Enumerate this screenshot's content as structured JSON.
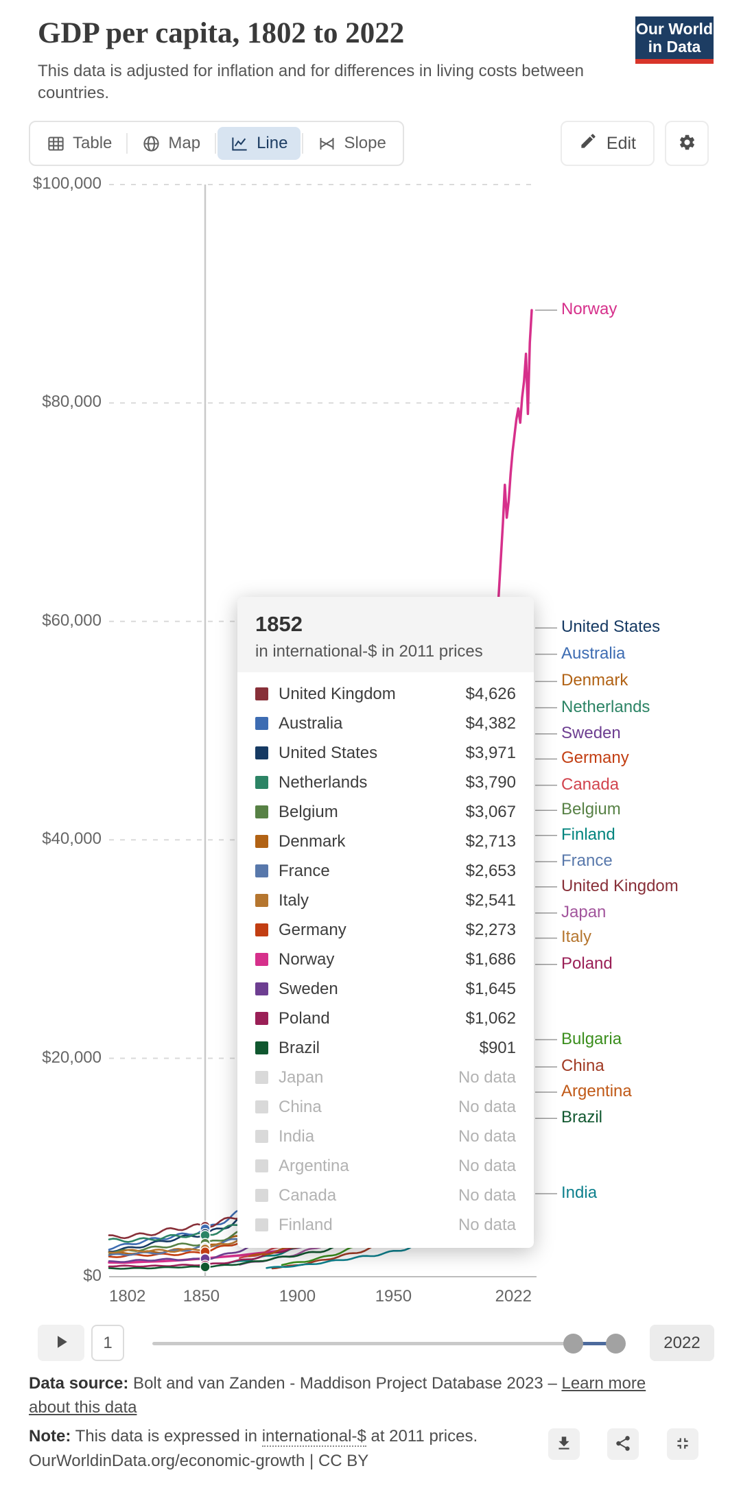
{
  "header": {
    "title": "GDP per capita, 1802 to 2022",
    "subtitle": "This data is adjusted for inflation and for differences in living costs between countries.",
    "logo_line1": "Our World",
    "logo_line2": "in Data"
  },
  "tabs": [
    {
      "id": "table",
      "label": "Table",
      "active": false
    },
    {
      "id": "map",
      "label": "Map",
      "active": false
    },
    {
      "id": "line",
      "label": "Line",
      "active": true
    },
    {
      "id": "slope",
      "label": "Slope",
      "active": false
    }
  ],
  "toolbar": {
    "edit_label": "Edit"
  },
  "chart_data": {
    "type": "line",
    "title": "GDP per capita, 1802 to 2022",
    "unit": "international-$ in 2011 prices",
    "xlim": [
      1802,
      2022
    ],
    "ylim": [
      0,
      100000
    ],
    "grid": true,
    "hover_year": 1852,
    "y_ticks": [
      {
        "label": "$100,000",
        "value": 100000
      },
      {
        "label": "$80,000",
        "value": 80000
      },
      {
        "label": "$60,000",
        "value": 60000
      },
      {
        "label": "$40,000",
        "value": 40000
      },
      {
        "label": "$20,000",
        "value": 20000
      },
      {
        "label": "$0",
        "value": 0
      }
    ],
    "x_ticks": [
      {
        "label": "1802",
        "year": 1802,
        "align": "left"
      },
      {
        "label": "1850",
        "year": 1850,
        "align": "center"
      },
      {
        "label": "1900",
        "year": 1900,
        "align": "center"
      },
      {
        "label": "1950",
        "year": 1950,
        "align": "center"
      },
      {
        "label": "2022",
        "year": 2022,
        "align": "right"
      }
    ],
    "series": [
      {
        "name": "Norway",
        "color": "#d6308b",
        "points": [
          [
            1802,
            1300
          ],
          [
            1810,
            1280
          ],
          [
            1820,
            1360
          ],
          [
            1830,
            1420
          ],
          [
            1840,
            1520
          ],
          [
            1852,
            1686
          ],
          [
            1860,
            1800
          ],
          [
            1870,
            1950
          ],
          [
            1880,
            2150
          ],
          [
            1890,
            2350
          ],
          [
            1900,
            2650
          ],
          [
            1910,
            3050
          ],
          [
            1920,
            3600
          ],
          [
            1930,
            4500
          ],
          [
            1940,
            5500
          ],
          [
            1950,
            7500
          ],
          [
            1960,
            10000
          ],
          [
            1970,
            14500
          ],
          [
            1980,
            21000
          ],
          [
            1990,
            30000
          ],
          [
            1995,
            40000
          ],
          [
            2000,
            50000
          ],
          [
            2003,
            57000
          ],
          [
            2005,
            63000
          ],
          [
            2007,
            69000
          ],
          [
            2008,
            72500
          ],
          [
            2009,
            69500
          ],
          [
            2010,
            71000
          ],
          [
            2011,
            73500
          ],
          [
            2012,
            75500
          ],
          [
            2013,
            77000
          ],
          [
            2014,
            78500
          ],
          [
            2015,
            79500
          ],
          [
            2016,
            78200
          ],
          [
            2017,
            80500
          ],
          [
            2018,
            82000
          ],
          [
            2019,
            84500
          ],
          [
            2020,
            79000
          ],
          [
            2021,
            85500
          ],
          [
            2022,
            88500
          ]
        ],
        "end_value": 88500
      },
      {
        "name": "United States",
        "color": "#163a63",
        "start_year": 1802,
        "start_value": 2400,
        "v1852": 3971,
        "end_value": 59400
      },
      {
        "name": "Australia",
        "color": "#3d6cb2",
        "start_year": 1802,
        "start_value": 2650,
        "v1852": 4382,
        "end_value": 57000
      },
      {
        "name": "Denmark",
        "color": "#b16214",
        "start_year": 1802,
        "start_value": 2000,
        "v1852": 2713,
        "end_value": 54500
      },
      {
        "name": "Netherlands",
        "color": "#2c8465",
        "start_year": 1802,
        "start_value": 3300,
        "v1852": 3790,
        "end_value": 52100
      },
      {
        "name": "Sweden",
        "color": "#6d3e91",
        "start_year": 1802,
        "start_value": 1400,
        "v1852": 1645,
        "end_value": 49700
      },
      {
        "name": "Germany",
        "color": "#c23e12",
        "start_year": 1802,
        "start_value": 1800,
        "v1852": 2273,
        "end_value": 47400
      },
      {
        "name": "Canada",
        "color": "#d2444e",
        "start_year": 1870,
        "start_value": 1700,
        "v1852": null,
        "end_value": 45000
      },
      {
        "name": "Belgium",
        "color": "#578145",
        "start_year": 1802,
        "start_value": 2300,
        "v1852": 3067,
        "end_value": 42700
      },
      {
        "name": "Finland",
        "color": "#00847e",
        "start_year": 1860,
        "start_value": 1100,
        "v1852": null,
        "end_value": 40400
      },
      {
        "name": "France",
        "color": "#5878ab",
        "start_year": 1802,
        "start_value": 1900,
        "v1852": 2653,
        "end_value": 38000
      },
      {
        "name": "United Kingdom",
        "color": "#883039",
        "start_year": 1802,
        "start_value": 3600,
        "v1852": 4626,
        "end_value": 35700
      },
      {
        "name": "Japan",
        "color": "#a2559c",
        "start_year": 1870,
        "start_value": 1100,
        "v1852": null,
        "end_value": 33300
      },
      {
        "name": "Italy",
        "color": "#b5762f",
        "start_year": 1802,
        "start_value": 2250,
        "v1852": 2541,
        "end_value": 31000
      },
      {
        "name": "Poland",
        "color": "#9a1f56",
        "start_year": 1802,
        "start_value": 950,
        "v1852": 1062,
        "end_value": 28600
      },
      {
        "name": "Bulgaria",
        "color": "#3b8e1d",
        "start_year": 1892,
        "start_value": 1100,
        "v1852": null,
        "end_value": 21700
      },
      {
        "name": "China",
        "color": "#a03a24",
        "start_year": 1887,
        "start_value": 800,
        "v1852": null,
        "end_value": 19200
      },
      {
        "name": "Argentina",
        "color": "#c05917",
        "start_year": 1875,
        "start_value": 1900,
        "v1852": null,
        "end_value": 16900
      },
      {
        "name": "Brazil",
        "color": "#10572f",
        "start_year": 1802,
        "start_value": 750,
        "v1852": 901,
        "end_value": 14500
      },
      {
        "name": "India",
        "color": "#0e808d",
        "start_year": 1884,
        "start_value": 800,
        "v1852": null,
        "end_value": 7600
      }
    ]
  },
  "tooltip": {
    "year": "1852",
    "subtitle": "in international-$ in 2011 prices",
    "rows": [
      {
        "name": "United Kingdom",
        "value": "$4,626",
        "color": "#883039",
        "no_data": false
      },
      {
        "name": "Australia",
        "value": "$4,382",
        "color": "#3d6cb2",
        "no_data": false
      },
      {
        "name": "United States",
        "value": "$3,971",
        "color": "#163a63",
        "no_data": false
      },
      {
        "name": "Netherlands",
        "value": "$3,790",
        "color": "#2c8465",
        "no_data": false
      },
      {
        "name": "Belgium",
        "value": "$3,067",
        "color": "#578145",
        "no_data": false
      },
      {
        "name": "Denmark",
        "value": "$2,713",
        "color": "#b16214",
        "no_data": false
      },
      {
        "name": "France",
        "value": "$2,653",
        "color": "#5878ab",
        "no_data": false
      },
      {
        "name": "Italy",
        "value": "$2,541",
        "color": "#b5762f",
        "no_data": false
      },
      {
        "name": "Germany",
        "value": "$2,273",
        "color": "#c23e12",
        "no_data": false
      },
      {
        "name": "Norway",
        "value": "$1,686",
        "color": "#d6308b",
        "no_data": false
      },
      {
        "name": "Sweden",
        "value": "$1,645",
        "color": "#6d3e91",
        "no_data": false
      },
      {
        "name": "Poland",
        "value": "$1,062",
        "color": "#9a1f56",
        "no_data": false
      },
      {
        "name": "Brazil",
        "value": "$901",
        "color": "#10572f",
        "no_data": false
      },
      {
        "name": "Japan",
        "value": "No data",
        "color": "#d9d9d9",
        "no_data": true
      },
      {
        "name": "China",
        "value": "No data",
        "color": "#d9d9d9",
        "no_data": true
      },
      {
        "name": "India",
        "value": "No data",
        "color": "#d9d9d9",
        "no_data": true
      },
      {
        "name": "Argentina",
        "value": "No data",
        "color": "#d9d9d9",
        "no_data": true
      },
      {
        "name": "Canada",
        "value": "No data",
        "color": "#d9d9d9",
        "no_data": true
      },
      {
        "name": "Finland",
        "value": "No data",
        "color": "#d9d9d9",
        "no_data": true
      }
    ]
  },
  "timeline": {
    "start_label": "1",
    "end_label": "2022"
  },
  "footer": {
    "source_label": "Data source:",
    "source_text": " Bolt and van Zanden - Maddison Project Database 2023 – ",
    "source_link": "Learn more about this data",
    "note_label": "Note:",
    "note_pre": " This data is expressed in ",
    "note_term": "international-$",
    "note_post": " at 2011 prices.",
    "citation": "OurWorldinData.org/economic-growth | CC BY"
  }
}
